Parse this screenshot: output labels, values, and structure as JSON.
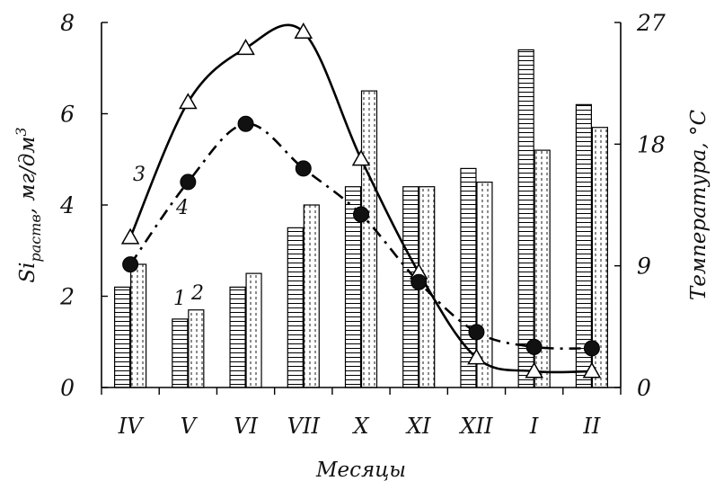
{
  "chart_data": {
    "type": "bar",
    "categories": [
      "IV",
      "V",
      "VI",
      "VII",
      "X",
      "XI",
      "XII",
      "I",
      "II"
    ],
    "xlabel": "Месяцы",
    "ylabel_left": "Si",
    "ylabel_left_sub": "раств",
    "ylabel_left_unit": ", мг/дм",
    "ylabel_left_sup": "3",
    "ylabel_right": "Температура, °С",
    "ylim_left": [
      0,
      8
    ],
    "ylim_right": [
      0,
      27
    ],
    "yticks_left": [
      "0",
      "2",
      "4",
      "6",
      "8"
    ],
    "yticks_right": [
      "0",
      "9",
      "18",
      "27"
    ],
    "series": [
      {
        "name": "1",
        "type": "bar",
        "axis": "left",
        "pattern": "horizontal-lines",
        "values": [
          2.2,
          1.5,
          2.2,
          3.5,
          4.4,
          4.4,
          4.8,
          7.4,
          6.2
        ]
      },
      {
        "name": "2",
        "type": "bar",
        "axis": "left",
        "pattern": "dotted-vertical",
        "values": [
          2.7,
          1.7,
          2.5,
          4.0,
          6.5,
          4.4,
          4.5,
          5.2,
          5.7
        ]
      },
      {
        "name": "3",
        "type": "line",
        "axis": "right",
        "marker": "triangle-open",
        "style": "solid",
        "values": [
          11.1,
          21.1,
          25.1,
          26.3,
          16.9,
          8.5,
          2.2,
          1.2,
          1.2
        ]
      },
      {
        "name": "4",
        "type": "line",
        "axis": "right",
        "marker": "circle-filled",
        "style": "dashed",
        "values": [
          9.1,
          15.2,
          19.5,
          16.2,
          12.8,
          7.8,
          4.1,
          3.0,
          2.9
        ]
      }
    ],
    "grid": false,
    "legend": "inline labels"
  }
}
